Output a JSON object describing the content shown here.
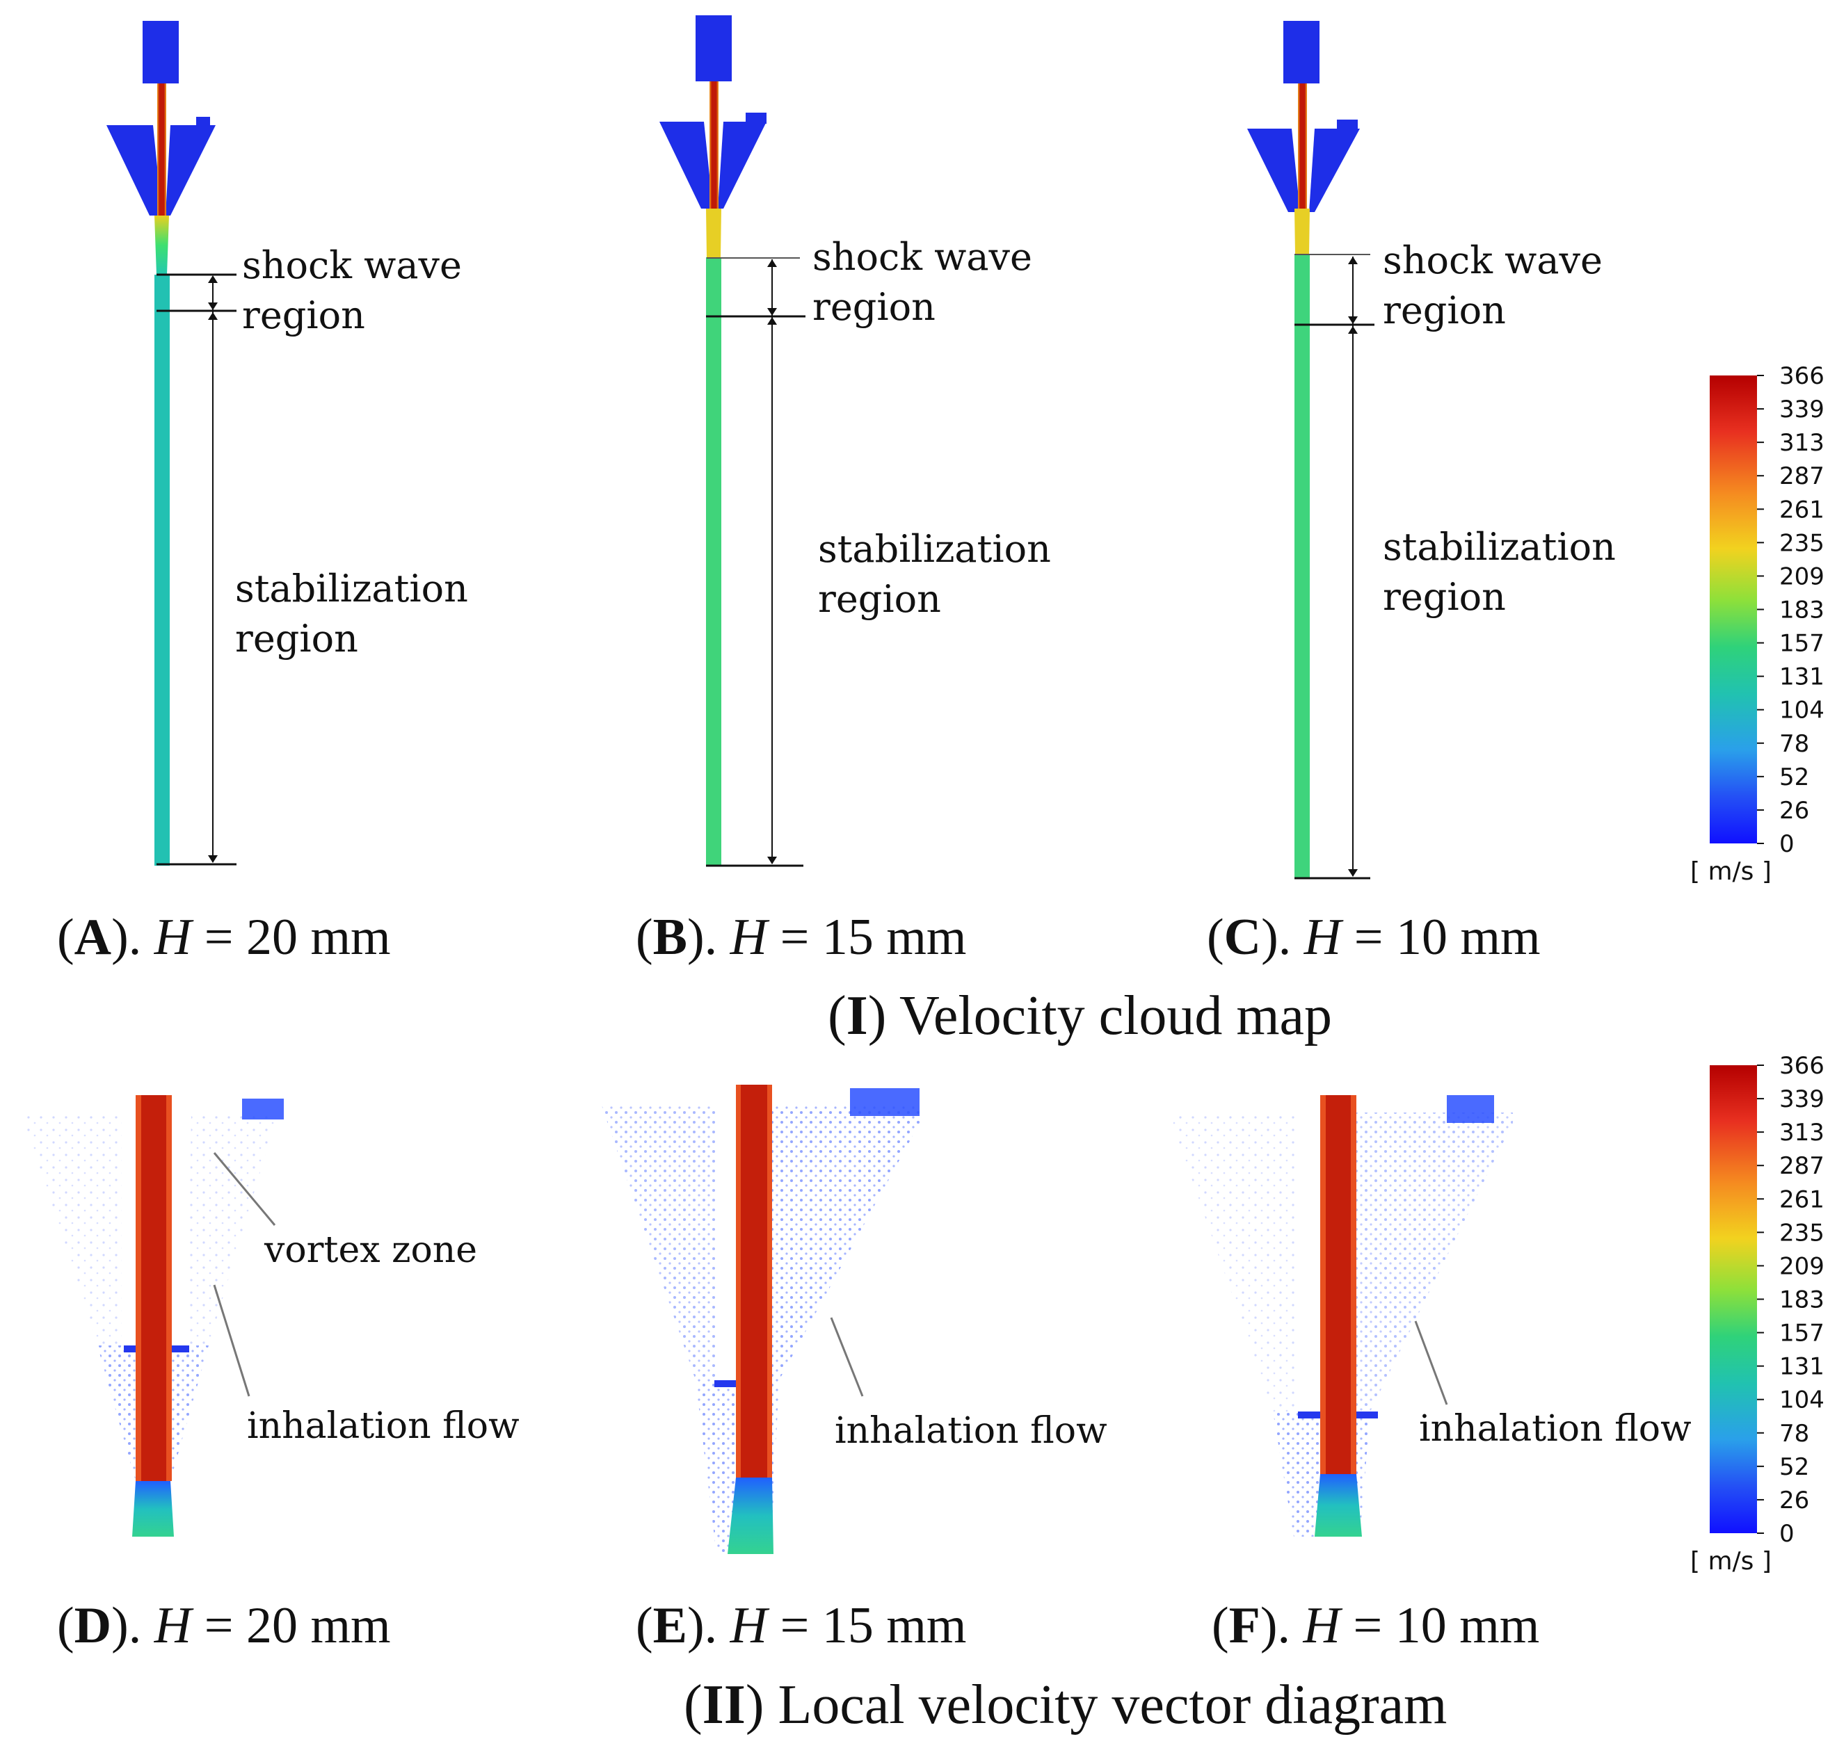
{
  "colorbar": {
    "ticks": [
      "366",
      "339",
      "313",
      "287",
      "261",
      "235",
      "209",
      "183",
      "157",
      "131",
      "104",
      "78",
      "52",
      "26",
      "0"
    ],
    "unit": "[ m/s ]",
    "colors": [
      "#b40000",
      "#e83020",
      "#f58a20",
      "#f2d21f",
      "#8ee03a",
      "#2fd27a",
      "#21c2b0",
      "#2aa0ea",
      "#2450f5",
      "#1010ff"
    ]
  },
  "section1": {
    "title_num": "I",
    "title_text": " Velocity cloud map",
    "panels": [
      {
        "letter": "A",
        "h": "H",
        "value": " = 20 mm",
        "shock": "shock wave",
        "shock2": "region",
        "stab": "stabilization",
        "stab2": "region"
      },
      {
        "letter": "B",
        "h": "H",
        "value": " = 15 mm",
        "shock": "shock wave",
        "shock2": "region",
        "stab": "stabilization",
        "stab2": "region"
      },
      {
        "letter": "C",
        "h": "H",
        "value": " = 10 mm",
        "shock": "shock wave",
        "shock2": "region",
        "stab": "stabilization",
        "stab2": "region"
      }
    ]
  },
  "section2": {
    "title_num": "II",
    "title_text": " Local velocity vector diagram",
    "panels": [
      {
        "letter": "D",
        "h": "H",
        "value": " = 20 mm",
        "ann1": "vortex zone",
        "ann2": "inhalation flow"
      },
      {
        "letter": "E",
        "h": "H",
        "value": " = 15 mm",
        "ann2": "inhalation flow"
      },
      {
        "letter": "F",
        "h": "H",
        "value": " = 10 mm",
        "ann2": "inhalation flow"
      }
    ]
  }
}
